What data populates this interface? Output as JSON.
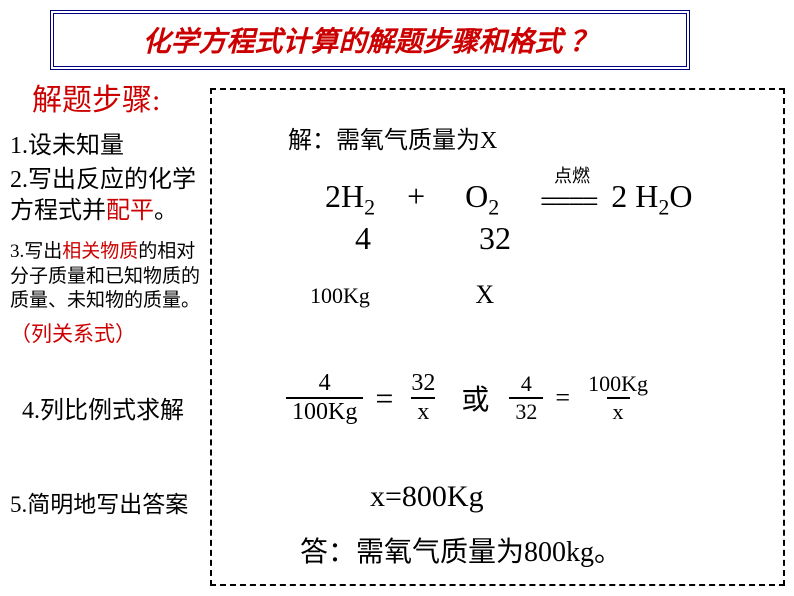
{
  "title": "化学方程式计算的解题步骤和格式 ？",
  "steps_header": "解题步骤:",
  "steps": {
    "s1": "1.设未知量",
    "s2a": "2.写出反应的化学方程式并",
    "s2b": "配平",
    "s2c": "。",
    "s3a": "3.写出",
    "s3b": "相关物质",
    "s3c": "的相对分子质量和已知物质的质量、未知物的质量。",
    "s3sub": "（列关系式）",
    "s4": "4.列比例式求解",
    "s5": "5.简明地写出答案"
  },
  "solution": {
    "line1": "解：需氧气质量为X",
    "ignite": "点燃",
    "eq_h2": "2H",
    "eq_plus": "+",
    "eq_o2": "O",
    "eq_dbl": "====",
    "eq_h2o": "2 H",
    "eq_o": "O",
    "sub2": "2",
    "mass_4": "4",
    "mass_32": "32",
    "known_100": "100Kg",
    "known_x": "X",
    "frac1_num": "4",
    "frac1_den": "100Kg",
    "frac_eq": "=",
    "frac2_num": "32",
    "frac2_den": "x",
    "frac_or": "或",
    "frac3_num": "4",
    "frac3_den": "32",
    "frac4_num": "100Kg",
    "frac4_den": "x",
    "result": "x=800Kg",
    "answer": "答：需氧气质量为800kg。"
  },
  "colors": {
    "title_border": "#000080",
    "red": "#cc0000",
    "black": "#000000",
    "background": "#ffffff"
  },
  "fontsizes": {
    "title": 28,
    "steps_header": 30,
    "step": 24,
    "step3": 19,
    "equation": 32,
    "answer": 28
  }
}
